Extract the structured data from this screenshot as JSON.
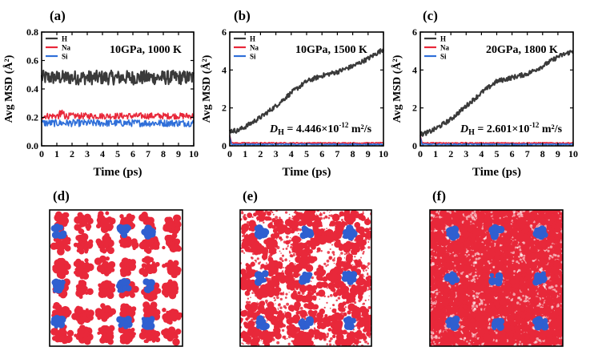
{
  "chart_data": [
    {
      "type": "line",
      "panel_label": "(a)",
      "annotation": "10GPa, 1000 K",
      "xlabel": "Time (ps)",
      "ylabel": "Avg MSD (Å²)",
      "xlim": [
        0,
        10
      ],
      "ylim": [
        0,
        0.8
      ],
      "xticks": [
        "0",
        "1",
        "2",
        "3",
        "4",
        "5",
        "6",
        "7",
        "8",
        "9",
        "10"
      ],
      "yticks": [
        "0.0",
        "0.2",
        "0.4",
        "0.6",
        "0.8"
      ],
      "legend": [
        "H",
        "Na",
        "Si"
      ],
      "series": [
        {
          "name": "H",
          "color": "#3a3a3a",
          "mean": 0.48,
          "noise": 0.05,
          "x": [
            0,
            10
          ]
        },
        {
          "name": "Na",
          "color": "#e8283a",
          "mean": 0.21,
          "noise": 0.022,
          "x": [
            0,
            10
          ]
        },
        {
          "name": "Si",
          "color": "#2f6fd9",
          "mean": 0.16,
          "noise": 0.025,
          "x": [
            0,
            10
          ]
        }
      ]
    },
    {
      "type": "line",
      "panel_label": "(b)",
      "annotation": "10GPa, 1500 K",
      "diffusion_label": "D",
      "diffusion_subscript": "H",
      "diffusion_value": " = 4.446×10",
      "diffusion_exp": "-12",
      "diffusion_unit": " m²/s",
      "xlabel": "Time (ps)",
      "ylabel": "Avg MSD (Å²)",
      "xlim": [
        0,
        10
      ],
      "ylim": [
        0,
        6
      ],
      "xticks": [
        "0",
        "1",
        "2",
        "3",
        "4",
        "5",
        "6",
        "7",
        "8",
        "9",
        "10"
      ],
      "yticks": [
        "0",
        "2",
        "4",
        "6"
      ],
      "legend": [
        "H",
        "Na",
        "Si"
      ],
      "series": [
        {
          "name": "H",
          "color": "#3a3a3a",
          "x": [
            0,
            0.5,
            1,
            2,
            3,
            4,
            5,
            6,
            7,
            8,
            9,
            10
          ],
          "y": [
            0.8,
            0.8,
            1.0,
            1.5,
            2.1,
            2.8,
            3.4,
            3.7,
            3.9,
            4.2,
            4.6,
            5.1
          ]
        },
        {
          "name": "Na",
          "color": "#e8283a",
          "x": [
            0,
            10
          ],
          "y": [
            0.15,
            0.15
          ]
        },
        {
          "name": "Si",
          "color": "#2f6fd9",
          "x": [
            0,
            10
          ],
          "y": [
            0.08,
            0.08
          ]
        }
      ]
    },
    {
      "type": "line",
      "panel_label": "(c)",
      "annotation": "20GPa, 1800 K",
      "diffusion_label": "D",
      "diffusion_subscript": "H",
      "diffusion_value": " = 2.601×10",
      "diffusion_exp": "-12",
      "diffusion_unit": " m²/s",
      "xlabel": "Time (ps)",
      "ylabel": "Avg MSD (Å²)",
      "xlim": [
        0,
        10
      ],
      "ylim": [
        0,
        6
      ],
      "xticks": [
        "0",
        "1",
        "2",
        "3",
        "4",
        "5",
        "6",
        "7",
        "8",
        "9",
        "10"
      ],
      "yticks": [
        "0",
        "2",
        "4",
        "6"
      ],
      "legend": [
        "H",
        "Na",
        "Si"
      ],
      "series": [
        {
          "name": "H",
          "color": "#3a3a3a",
          "x": [
            0,
            0.5,
            1,
            2,
            3,
            4,
            5,
            6,
            7,
            8,
            9,
            10
          ],
          "y": [
            0.6,
            0.7,
            0.9,
            1.4,
            2.1,
            2.8,
            3.4,
            3.6,
            3.8,
            4.2,
            4.7,
            5.0
          ]
        },
        {
          "name": "Na",
          "color": "#e8283a",
          "x": [
            0,
            10
          ],
          "y": [
            0.15,
            0.15
          ]
        },
        {
          "name": "Si",
          "color": "#2f6fd9",
          "x": [
            0,
            10
          ],
          "y": [
            0.08,
            0.08
          ]
        }
      ]
    }
  ],
  "structure_panels": [
    {
      "label": "(d)",
      "density": "sparse",
      "red": "#e8283a",
      "blue": "#2f5fd0"
    },
    {
      "label": "(e)",
      "density": "medium",
      "red": "#e8283a",
      "blue": "#2f5fd0"
    },
    {
      "label": "(f)",
      "density": "dense",
      "red": "#e8283a",
      "blue": "#2f5fd0"
    }
  ]
}
